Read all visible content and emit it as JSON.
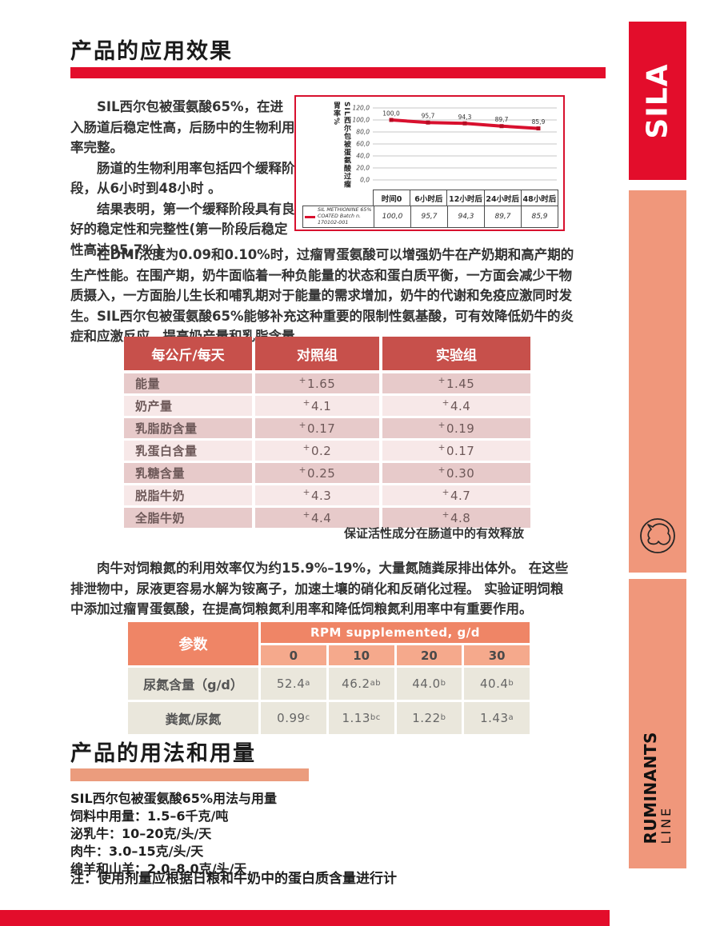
{
  "colors": {
    "brand_red": "#e30d2b",
    "salmon": "#f0977b",
    "peach_bar": "#eb9c7d",
    "table1_header": "#c7504b",
    "table1_row_dark": "#e7caca",
    "table1_row_light": "#f7e8e8",
    "table2_header": "#ef8566",
    "table2_subheader": "#f5a98c",
    "table2_row": "#eae7dc",
    "chart_line": "#d8102e"
  },
  "section1": {
    "title": "产品的应用效果",
    "intro_paragraphs": [
      "SIL西尔包被蛋氨酸65%，在进入肠道后稳定性高，后肠中的生物利用率完整。",
      "肠道的生物利用率包括四个缓释阶段，从6小时到48小时 。",
      "结果表明，第一个缓释阶段具有良好的稳定性和完整性(第一阶段后稳定性高达95,7%)"
    ],
    "paragraph_dmi": "在DMI浓度为0.09和0.10%时，过瘤胃蛋氨酸可以增强奶牛在产奶期和高产期的生产性能。在围产期，奶牛面临着一种负能量的状态和蛋白质平衡，一方面会减少干物质摄入，一方面胎儿生长和哺乳期对于能量的需求增加，奶牛的代谢和免疫应激同时发生。SIL西尔包被蛋氨酸65%能够补充这种重要的限制性氨基酸，可有效降低奶牛的炎症和应激反应，提高奶产量和乳脂含量。",
    "paragraph_nitrogen": "肉牛对饲粮氮的利用效率仅为约15.9%–19%，大量氮随粪尿排出体外。 在这些排泄物中，尿液更容易水解为铵离子，加速土壤的硝化和反硝化过程。 实验证明饲粮中添加过瘤胃蛋氨酸，在提高饲粮氮利用率和降低饲粮氮利用率中有重要作用。"
  },
  "chart_data": {
    "type": "line",
    "title": "",
    "ylabel": "SIL西尔包被蛋氨酸过瘤胃率%",
    "categories": [
      "时间0",
      "6小时后",
      "12小时后",
      "24小时后",
      "48小时后"
    ],
    "series": [
      {
        "name": "SIL METHIONINE 65% COATED  Batch n. 170102-001",
        "values": [
          100.0,
          95.7,
          94.3,
          89.7,
          85.9
        ]
      }
    ],
    "display_values": [
      "100,0",
      "95,7",
      "94,3",
      "89,7",
      "85,9"
    ],
    "ylim": [
      0,
      120
    ],
    "ytick_labels": [
      "0,0",
      "20,0",
      "40,0",
      "60,0",
      "80,0",
      "100,0",
      "120,0"
    ],
    "grid": true,
    "legend_line1": "SIL METHIONINE 65% COATED  Batch n.",
    "legend_line2": "170102-001",
    "legend_position": "bottom-left"
  },
  "table1": {
    "headers": [
      "每公斤/每天",
      "对照组",
      "实验组"
    ],
    "rows": [
      {
        "label": "能量",
        "control": {
          "sign": "+",
          "v": "1.65"
        },
        "trial": {
          "sign": "+",
          "v": "1.45"
        }
      },
      {
        "label": "奶产量",
        "control": {
          "sign": "+",
          "v": "4.1"
        },
        "trial": {
          "sign": "+",
          "v": "4.4"
        }
      },
      {
        "label": "乳脂肪含量",
        "control": {
          "sign": "+",
          "v": "0.17"
        },
        "trial": {
          "sign": "+",
          "v": "0.19"
        }
      },
      {
        "label": "乳蛋白含量",
        "control": {
          "sign": "+",
          "v": "0.2"
        },
        "trial": {
          "sign": "+",
          "v": "0.17"
        }
      },
      {
        "label": "乳糖含量",
        "control": {
          "sign": "+",
          "v": "0.25"
        },
        "trial": {
          "sign": "+",
          "v": "0.30"
        }
      },
      {
        "label": "脱脂牛奶",
        "control": {
          "sign": "+",
          "v": "4.3"
        },
        "trial": {
          "sign": "+",
          "v": "4.7"
        }
      },
      {
        "label": "全脂牛奶",
        "control": {
          "sign": "+",
          "v": "4.4"
        },
        "trial": {
          "sign": "+",
          "v": "4.8"
        }
      }
    ],
    "caption": "保证活性成分在肠道中的有效释放"
  },
  "table2": {
    "param_header": "参数",
    "group_header": "RPM supplemented, g/d",
    "doses": [
      "0",
      "10",
      "20",
      "30"
    ],
    "rows": [
      {
        "label": "尿氮含量（g/d）",
        "values": [
          {
            "v": "52.4",
            "sup": "a"
          },
          {
            "v": "46.2",
            "sup": "ab"
          },
          {
            "v": "44.0",
            "sup": "b"
          },
          {
            "v": "40.4",
            "sup": "b"
          }
        ]
      },
      {
        "label": "粪氮/尿氮",
        "values": [
          {
            "v": "0.99",
            "sup": "c"
          },
          {
            "v": "1.13",
            "sup": "bc"
          },
          {
            "v": "1.22",
            "sup": "b"
          },
          {
            "v": "1.43",
            "sup": "a"
          }
        ]
      }
    ]
  },
  "section2": {
    "title": "产品的用法和用量",
    "usage_lines": [
      "SIL西尔包被蛋氨酸65%用法与用量",
      "饲料中用量：1.5–6千克/吨",
      "泌乳牛：10–20克/头/天",
      "肉牛：3.0–15克/头/天",
      "绵羊和山羊：2.0–8.0克/头/天"
    ],
    "note": "注：使用剂量应根据日粮和牛奶中的蛋白质含量进行计"
  },
  "sidebar": {
    "brand": "SILA",
    "line_word1": "RUMINANTS",
    "line_word2": "LINE"
  }
}
